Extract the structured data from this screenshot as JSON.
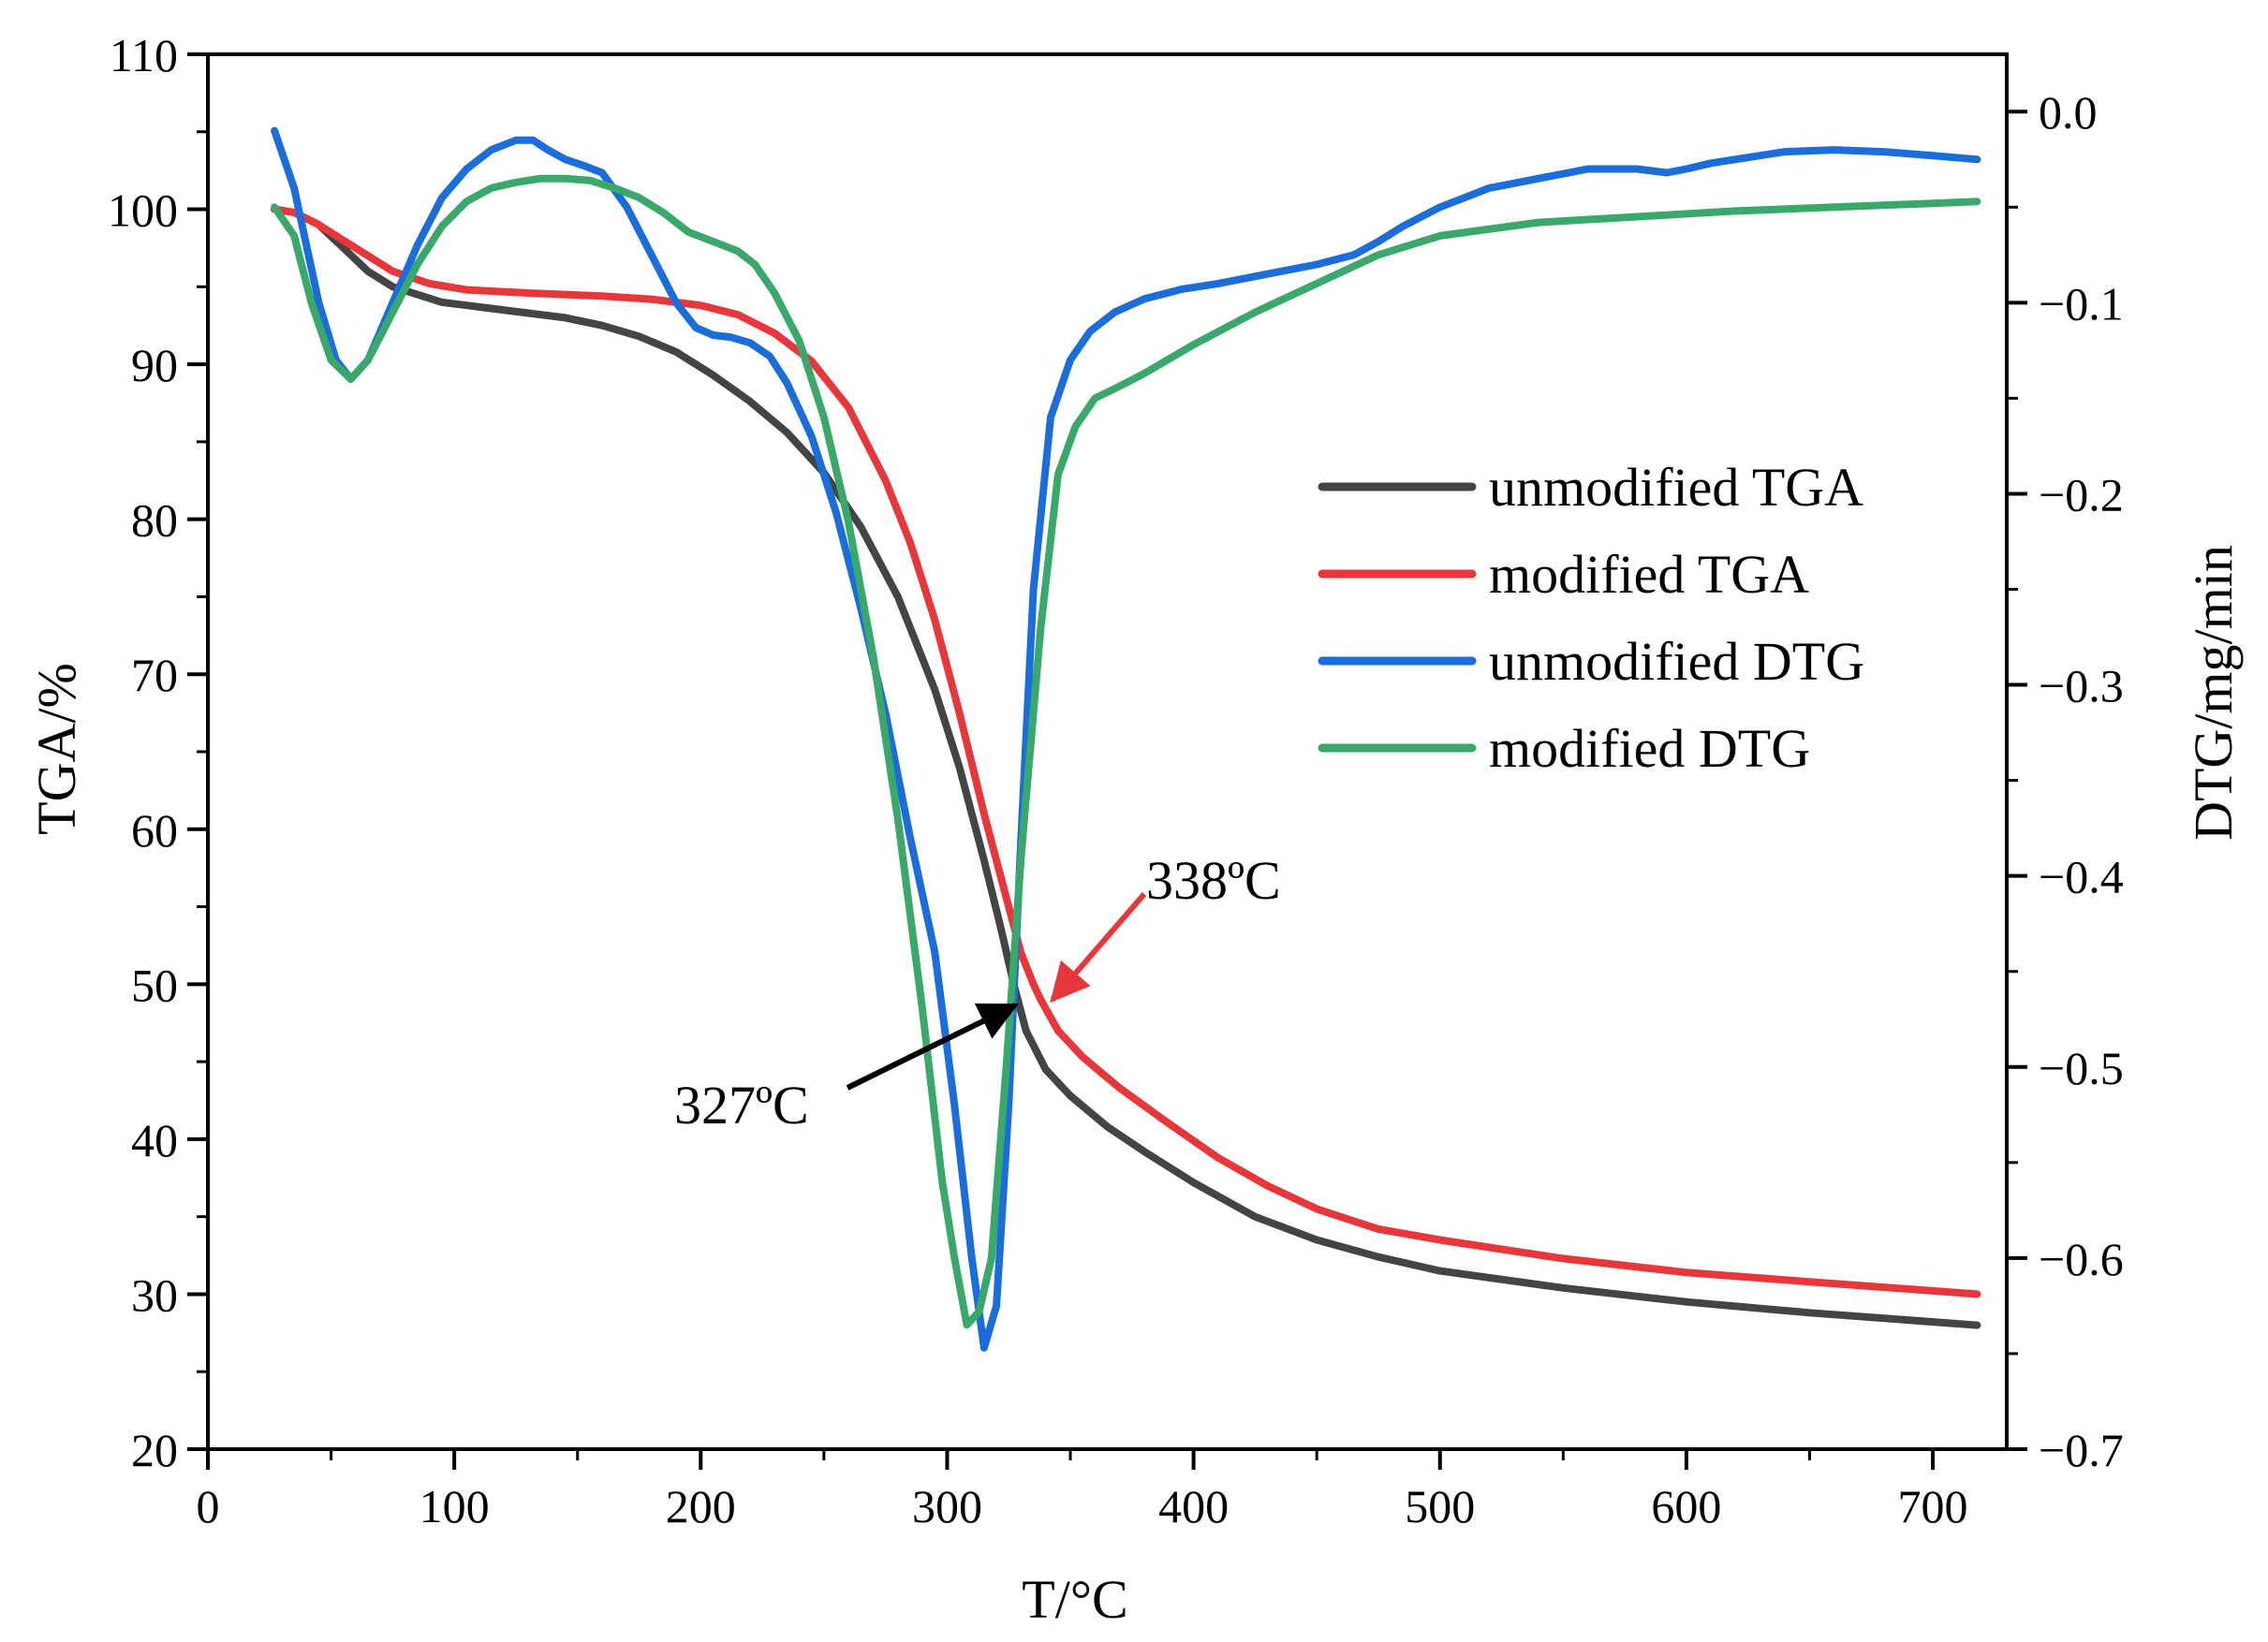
{
  "chart_data": {
    "type": "line",
    "xlabel": "T/°C",
    "ylabel_left": "TGA/%",
    "ylabel_right": "DTG/mg/min",
    "xlim": [
      0,
      730
    ],
    "ylim_left": [
      20,
      110
    ],
    "ylim_right": [
      -0.7,
      0.03
    ],
    "x_ticks": [
      0,
      100,
      200,
      300,
      400,
      500,
      600,
      700
    ],
    "y_left_ticks": [
      20,
      30,
      40,
      50,
      60,
      70,
      80,
      90,
      100,
      110
    ],
    "y_right_ticks": [
      0.0,
      -0.1,
      -0.2,
      -0.3,
      -0.4,
      -0.5,
      -0.6,
      -0.7
    ],
    "y_right_tick_labels": [
      "0.0",
      "−0.1",
      "−0.2",
      "−0.3",
      "−0.4",
      "−0.5",
      "−0.6",
      "−0.7"
    ],
    "grid": false,
    "legend_position": "right",
    "series": [
      {
        "name": "unmodified TGA",
        "axis": "left",
        "color": "#444444",
        "x": [
          27,
          35,
          45,
          55,
          65,
          75,
          85,
          95,
          105,
          115,
          130,
          145,
          160,
          175,
          190,
          205,
          220,
          235,
          250,
          265,
          280,
          295,
          305,
          315,
          322,
          327,
          332,
          340,
          350,
          365,
          380,
          400,
          425,
          450,
          475,
          500,
          550,
          600,
          650,
          718
        ],
        "y": [
          100,
          99.8,
          99,
          97.5,
          96,
          95,
          94.5,
          94,
          93.8,
          93.6,
          93.3,
          93,
          92.5,
          91.8,
          90.8,
          89.3,
          87.6,
          85.6,
          83,
          79.5,
          75,
          69,
          64,
          58,
          53.5,
          50,
          47,
          44.5,
          42.8,
          40.8,
          39.2,
          37.2,
          35,
          33.5,
          32.4,
          31.5,
          30.4,
          29.5,
          28.8,
          28
        ]
      },
      {
        "name": "modified TGA",
        "axis": "left",
        "color": "#e8373b",
        "x": [
          27,
          35,
          45,
          55,
          65,
          75,
          90,
          105,
          130,
          160,
          180,
          200,
          215,
          230,
          245,
          260,
          275,
          285,
          295,
          305,
          315,
          325,
          330,
          335,
          338,
          345,
          355,
          370,
          390,
          410,
          430,
          450,
          475,
          500,
          550,
          600,
          650,
          718
        ],
        "y": [
          100,
          99.8,
          99,
          98,
          97,
          96,
          95.2,
          94.8,
          94.6,
          94.4,
          94.2,
          93.8,
          93.2,
          92,
          90.2,
          87.2,
          82.5,
          78.5,
          73.5,
          67.5,
          61,
          55,
          52,
          50,
          49,
          47,
          45.3,
          43.3,
          41,
          38.8,
          37,
          35.5,
          34.2,
          33.5,
          32.3,
          31.4,
          30.8,
          30
        ]
      },
      {
        "name": "unmodified DTG",
        "axis": "right",
        "color": "#1b6ddc",
        "x": [
          27,
          35,
          45,
          52,
          58,
          65,
          75,
          85,
          95,
          105,
          115,
          125,
          132,
          138,
          145,
          152,
          160,
          170,
          180,
          190,
          198,
          205,
          212,
          220,
          228,
          235,
          245,
          255,
          265,
          275,
          285,
          295,
          303,
          310,
          315,
          320,
          325,
          330,
          335,
          342,
          350,
          358,
          368,
          380,
          395,
          410,
          430,
          450,
          465,
          475,
          485,
          500,
          520,
          540,
          560,
          580,
          592,
          600,
          610,
          625,
          640,
          660,
          680,
          700,
          718
        ],
        "y": [
          -0.01,
          -0.04,
          -0.1,
          -0.13,
          -0.14,
          -0.13,
          -0.1,
          -0.07,
          -0.045,
          -0.03,
          -0.02,
          -0.015,
          -0.015,
          -0.02,
          -0.025,
          -0.028,
          -0.032,
          -0.05,
          -0.075,
          -0.1,
          -0.113,
          -0.117,
          -0.118,
          -0.121,
          -0.128,
          -0.142,
          -0.17,
          -0.21,
          -0.26,
          -0.315,
          -0.38,
          -0.44,
          -0.52,
          -0.6,
          -0.647,
          -0.625,
          -0.52,
          -0.38,
          -0.25,
          -0.16,
          -0.13,
          -0.115,
          -0.105,
          -0.098,
          -0.093,
          -0.09,
          -0.085,
          -0.08,
          -0.075,
          -0.068,
          -0.06,
          -0.05,
          -0.04,
          -0.035,
          -0.03,
          -0.03,
          -0.032,
          -0.03,
          -0.027,
          -0.024,
          -0.021,
          -0.02,
          -0.021,
          -0.023,
          -0.025
        ]
      },
      {
        "name": "modified DTG",
        "axis": "right",
        "color": "#3aa86b",
        "x": [
          27,
          35,
          42,
          50,
          58,
          65,
          75,
          85,
          95,
          105,
          115,
          125,
          135,
          145,
          155,
          165,
          175,
          185,
          195,
          205,
          215,
          222,
          230,
          240,
          250,
          260,
          270,
          280,
          290,
          298,
          303,
          308,
          313,
          318,
          324,
          330,
          338,
          345,
          352,
          360,
          368,
          380,
          400,
          425,
          450,
          475,
          500,
          540,
          580,
          620,
          660,
          700,
          718
        ],
        "y": [
          -0.05,
          -0.065,
          -0.1,
          -0.13,
          -0.14,
          -0.13,
          -0.105,
          -0.08,
          -0.06,
          -0.047,
          -0.04,
          -0.037,
          -0.035,
          -0.035,
          -0.036,
          -0.04,
          -0.045,
          -0.053,
          -0.063,
          -0.068,
          -0.073,
          -0.08,
          -0.095,
          -0.12,
          -0.16,
          -0.215,
          -0.285,
          -0.37,
          -0.47,
          -0.56,
          -0.6,
          -0.635,
          -0.628,
          -0.6,
          -0.5,
          -0.39,
          -0.27,
          -0.19,
          -0.165,
          -0.15,
          -0.145,
          -0.137,
          -0.122,
          -0.105,
          -0.09,
          -0.075,
          -0.065,
          -0.058,
          -0.055,
          -0.052,
          -0.05,
          -0.048,
          -0.047
        ]
      }
    ],
    "annotations": [
      {
        "label": "327ºC",
        "color": "#000000",
        "x": 327,
        "y": 50
      },
      {
        "label": "338ºC",
        "color": "#e8373b",
        "x": 338,
        "y": 49
      }
    ]
  }
}
